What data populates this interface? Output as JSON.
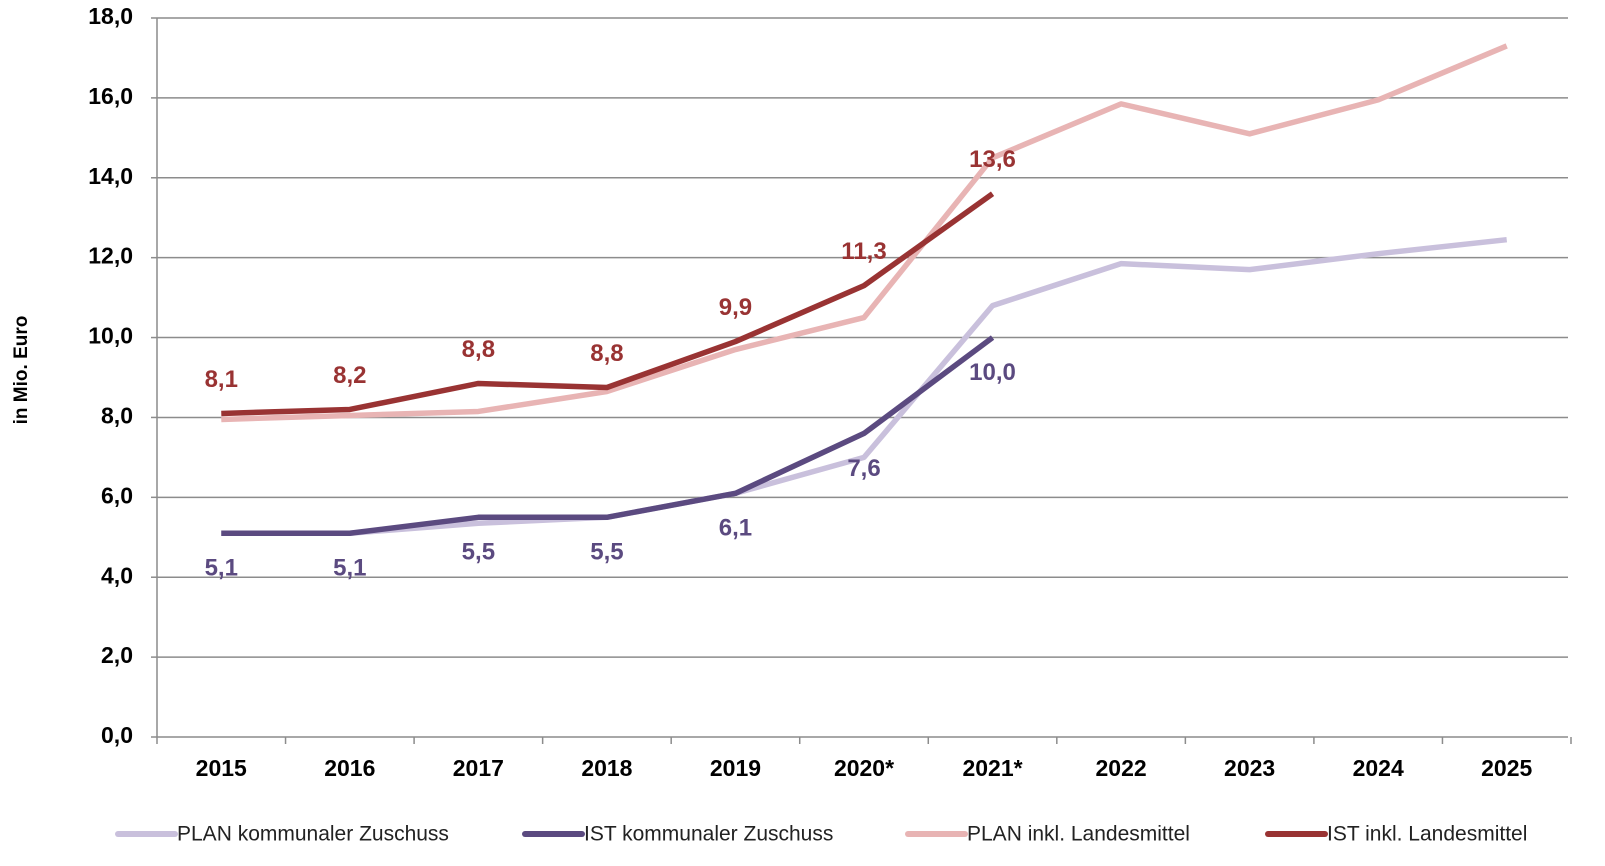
{
  "chart_data": {
    "type": "line",
    "ylabel": "in Mio. Euro",
    "categories": [
      "2015",
      "2016",
      "2017",
      "2018",
      "2019",
      "2020*",
      "2021*",
      "2022",
      "2023",
      "2024",
      "2025"
    ],
    "series": [
      {
        "name": "PLAN kommunaler Zuschuss",
        "color": "#c9c0dc",
        "values": [
          5.1,
          5.1,
          5.35,
          5.5,
          6.1,
          7.0,
          10.8,
          11.85,
          11.7,
          12.1,
          12.45
        ]
      },
      {
        "name": "IST kommunaler Zuschuss",
        "color": "#5b4a80",
        "values": [
          5.1,
          5.1,
          5.5,
          5.5,
          6.1,
          7.6,
          10.0,
          null,
          null,
          null,
          null
        ],
        "value_labels": [
          "5,1",
          "5,1",
          "5,5",
          "5,5",
          "6,1",
          "7,6",
          "10,0",
          null,
          null,
          null,
          null
        ]
      },
      {
        "name": "PLAN inkl. Landesmittel",
        "color": "#e8b4b4",
        "values": [
          7.95,
          8.05,
          8.15,
          8.65,
          9.7,
          10.5,
          14.5,
          15.85,
          15.1,
          15.95,
          17.3
        ]
      },
      {
        "name": "IST inkl. Landesmittel",
        "color": "#993333",
        "values": [
          8.1,
          8.2,
          8.85,
          8.75,
          9.9,
          11.3,
          13.6,
          null,
          null,
          null,
          null
        ],
        "value_labels": [
          "8,1",
          "8,2",
          "8,8",
          "8,8",
          "9,9",
          "11,3",
          "13,6",
          null,
          null,
          null,
          null
        ]
      }
    ],
    "ylim": [
      0,
      18
    ],
    "yticks": [
      {
        "value": 0,
        "label": "0,0"
      },
      {
        "value": 2,
        "label": "2,0"
      },
      {
        "value": 4,
        "label": "4,0"
      },
      {
        "value": 6,
        "label": "6,0"
      },
      {
        "value": 8,
        "label": "8,0"
      },
      {
        "value": 10,
        "label": "10,0"
      },
      {
        "value": 12,
        "label": "12,0"
      },
      {
        "value": 14,
        "label": "14,0"
      },
      {
        "value": 16,
        "label": "16,0"
      },
      {
        "value": 18,
        "label": "18,0"
      }
    ],
    "grid": true,
    "legend": "bottom"
  }
}
